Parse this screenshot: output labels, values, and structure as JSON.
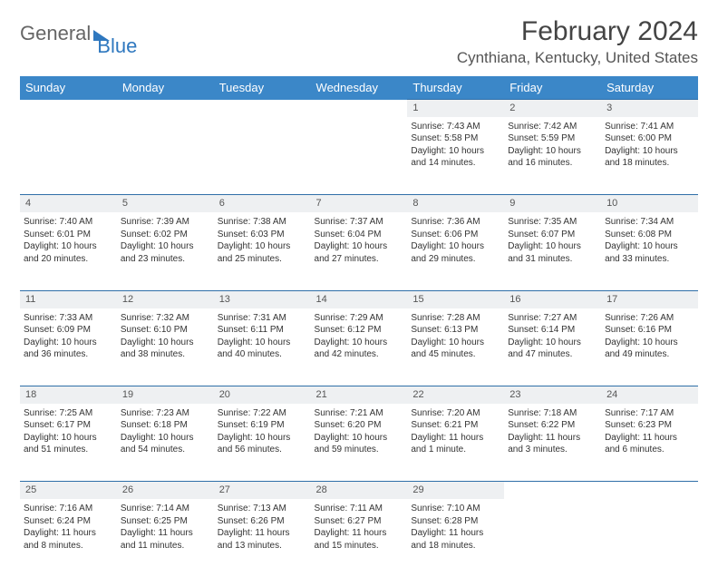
{
  "brand": {
    "part1": "General",
    "part2": "Blue"
  },
  "title": "February 2024",
  "location": "Cynthiana, Kentucky, United States",
  "colors": {
    "header_bg": "#3b87c8",
    "header_text": "#ffffff",
    "rule": "#2f6fa8",
    "daynum_bg": "#eef0f2",
    "body_text": "#333333",
    "brand_blue": "#2f78bf"
  },
  "weekdays": [
    "Sunday",
    "Monday",
    "Tuesday",
    "Wednesday",
    "Thursday",
    "Friday",
    "Saturday"
  ],
  "weeks": [
    [
      null,
      null,
      null,
      null,
      {
        "n": "1",
        "sunrise": "Sunrise: 7:43 AM",
        "sunset": "Sunset: 5:58 PM",
        "daylight1": "Daylight: 10 hours",
        "daylight2": "and 14 minutes."
      },
      {
        "n": "2",
        "sunrise": "Sunrise: 7:42 AM",
        "sunset": "Sunset: 5:59 PM",
        "daylight1": "Daylight: 10 hours",
        "daylight2": "and 16 minutes."
      },
      {
        "n": "3",
        "sunrise": "Sunrise: 7:41 AM",
        "sunset": "Sunset: 6:00 PM",
        "daylight1": "Daylight: 10 hours",
        "daylight2": "and 18 minutes."
      }
    ],
    [
      {
        "n": "4",
        "sunrise": "Sunrise: 7:40 AM",
        "sunset": "Sunset: 6:01 PM",
        "daylight1": "Daylight: 10 hours",
        "daylight2": "and 20 minutes."
      },
      {
        "n": "5",
        "sunrise": "Sunrise: 7:39 AM",
        "sunset": "Sunset: 6:02 PM",
        "daylight1": "Daylight: 10 hours",
        "daylight2": "and 23 minutes."
      },
      {
        "n": "6",
        "sunrise": "Sunrise: 7:38 AM",
        "sunset": "Sunset: 6:03 PM",
        "daylight1": "Daylight: 10 hours",
        "daylight2": "and 25 minutes."
      },
      {
        "n": "7",
        "sunrise": "Sunrise: 7:37 AM",
        "sunset": "Sunset: 6:04 PM",
        "daylight1": "Daylight: 10 hours",
        "daylight2": "and 27 minutes."
      },
      {
        "n": "8",
        "sunrise": "Sunrise: 7:36 AM",
        "sunset": "Sunset: 6:06 PM",
        "daylight1": "Daylight: 10 hours",
        "daylight2": "and 29 minutes."
      },
      {
        "n": "9",
        "sunrise": "Sunrise: 7:35 AM",
        "sunset": "Sunset: 6:07 PM",
        "daylight1": "Daylight: 10 hours",
        "daylight2": "and 31 minutes."
      },
      {
        "n": "10",
        "sunrise": "Sunrise: 7:34 AM",
        "sunset": "Sunset: 6:08 PM",
        "daylight1": "Daylight: 10 hours",
        "daylight2": "and 33 minutes."
      }
    ],
    [
      {
        "n": "11",
        "sunrise": "Sunrise: 7:33 AM",
        "sunset": "Sunset: 6:09 PM",
        "daylight1": "Daylight: 10 hours",
        "daylight2": "and 36 minutes."
      },
      {
        "n": "12",
        "sunrise": "Sunrise: 7:32 AM",
        "sunset": "Sunset: 6:10 PM",
        "daylight1": "Daylight: 10 hours",
        "daylight2": "and 38 minutes."
      },
      {
        "n": "13",
        "sunrise": "Sunrise: 7:31 AM",
        "sunset": "Sunset: 6:11 PM",
        "daylight1": "Daylight: 10 hours",
        "daylight2": "and 40 minutes."
      },
      {
        "n": "14",
        "sunrise": "Sunrise: 7:29 AM",
        "sunset": "Sunset: 6:12 PM",
        "daylight1": "Daylight: 10 hours",
        "daylight2": "and 42 minutes."
      },
      {
        "n": "15",
        "sunrise": "Sunrise: 7:28 AM",
        "sunset": "Sunset: 6:13 PM",
        "daylight1": "Daylight: 10 hours",
        "daylight2": "and 45 minutes."
      },
      {
        "n": "16",
        "sunrise": "Sunrise: 7:27 AM",
        "sunset": "Sunset: 6:14 PM",
        "daylight1": "Daylight: 10 hours",
        "daylight2": "and 47 minutes."
      },
      {
        "n": "17",
        "sunrise": "Sunrise: 7:26 AM",
        "sunset": "Sunset: 6:16 PM",
        "daylight1": "Daylight: 10 hours",
        "daylight2": "and 49 minutes."
      }
    ],
    [
      {
        "n": "18",
        "sunrise": "Sunrise: 7:25 AM",
        "sunset": "Sunset: 6:17 PM",
        "daylight1": "Daylight: 10 hours",
        "daylight2": "and 51 minutes."
      },
      {
        "n": "19",
        "sunrise": "Sunrise: 7:23 AM",
        "sunset": "Sunset: 6:18 PM",
        "daylight1": "Daylight: 10 hours",
        "daylight2": "and 54 minutes."
      },
      {
        "n": "20",
        "sunrise": "Sunrise: 7:22 AM",
        "sunset": "Sunset: 6:19 PM",
        "daylight1": "Daylight: 10 hours",
        "daylight2": "and 56 minutes."
      },
      {
        "n": "21",
        "sunrise": "Sunrise: 7:21 AM",
        "sunset": "Sunset: 6:20 PM",
        "daylight1": "Daylight: 10 hours",
        "daylight2": "and 59 minutes."
      },
      {
        "n": "22",
        "sunrise": "Sunrise: 7:20 AM",
        "sunset": "Sunset: 6:21 PM",
        "daylight1": "Daylight: 11 hours",
        "daylight2": "and 1 minute."
      },
      {
        "n": "23",
        "sunrise": "Sunrise: 7:18 AM",
        "sunset": "Sunset: 6:22 PM",
        "daylight1": "Daylight: 11 hours",
        "daylight2": "and 3 minutes."
      },
      {
        "n": "24",
        "sunrise": "Sunrise: 7:17 AM",
        "sunset": "Sunset: 6:23 PM",
        "daylight1": "Daylight: 11 hours",
        "daylight2": "and 6 minutes."
      }
    ],
    [
      {
        "n": "25",
        "sunrise": "Sunrise: 7:16 AM",
        "sunset": "Sunset: 6:24 PM",
        "daylight1": "Daylight: 11 hours",
        "daylight2": "and 8 minutes."
      },
      {
        "n": "26",
        "sunrise": "Sunrise: 7:14 AM",
        "sunset": "Sunset: 6:25 PM",
        "daylight1": "Daylight: 11 hours",
        "daylight2": "and 11 minutes."
      },
      {
        "n": "27",
        "sunrise": "Sunrise: 7:13 AM",
        "sunset": "Sunset: 6:26 PM",
        "daylight1": "Daylight: 11 hours",
        "daylight2": "and 13 minutes."
      },
      {
        "n": "28",
        "sunrise": "Sunrise: 7:11 AM",
        "sunset": "Sunset: 6:27 PM",
        "daylight1": "Daylight: 11 hours",
        "daylight2": "and 15 minutes."
      },
      {
        "n": "29",
        "sunrise": "Sunrise: 7:10 AM",
        "sunset": "Sunset: 6:28 PM",
        "daylight1": "Daylight: 11 hours",
        "daylight2": "and 18 minutes."
      },
      null,
      null
    ]
  ]
}
